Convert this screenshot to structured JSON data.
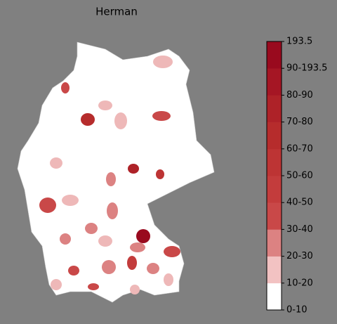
{
  "title": "Herman",
  "colorbar": {
    "labels": [
      "0-10",
      "10-20",
      "20-30",
      "30-40",
      "40-50",
      "50-60",
      "60-70",
      "70-80",
      "80-90",
      "90-193.5",
      "193.5"
    ],
    "colors": [
      "#ffffff",
      "#f2c2c2",
      "#dc8282",
      "#c94848",
      "#c33c3c",
      "#bd3434",
      "#b62c2c",
      "#ae2228",
      "#a51624",
      "#990a1e"
    ]
  }
}
